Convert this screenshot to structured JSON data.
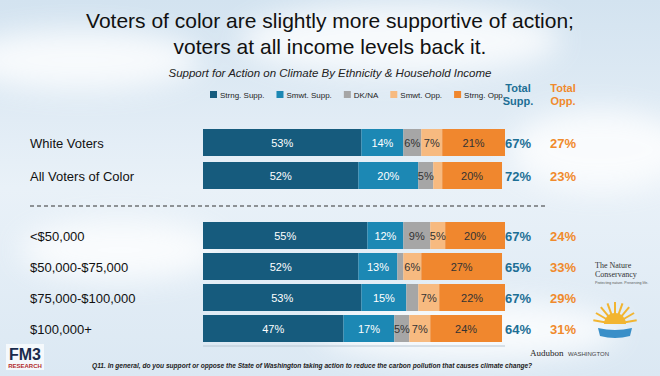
{
  "chart_data": {
    "type": "bar",
    "orientation": "horizontal",
    "stacked": true,
    "data_labels": true,
    "tick_labels": "y",
    "title": "Voters of color are slightly more supportive of action; voters at all income levels back it.",
    "subtitle": "Support for Action on Climate By Ethnicity & Household Income",
    "categories": [
      "White Voters",
      "All Voters of Color",
      "<$50,000",
      "$50,000-$75,000",
      "$75,000-$100,000",
      "$100,000+"
    ],
    "xlim": [
      0,
      101
    ],
    "series": [
      {
        "name": "Strng. Supp.",
        "color": "#165b7d",
        "values": [
          53,
          52,
          55,
          52,
          53,
          47
        ],
        "value_labels": [
          "53%",
          "52%",
          "55%",
          "52%",
          "53%",
          "47%"
        ]
      },
      {
        "name": "Smwt. Supp.",
        "color": "#1c88b4",
        "values": [
          14,
          20,
          12,
          13,
          15,
          17
        ],
        "value_labels": [
          "14%",
          "20%",
          "12%",
          "13%",
          "15%",
          "17%"
        ]
      },
      {
        "name": "DK/NA",
        "color": "#a6a6a6",
        "values": [
          6,
          5,
          9,
          2,
          4,
          5
        ],
        "value_labels": [
          "6%",
          "5%",
          "9%",
          null,
          null,
          "5%"
        ]
      },
      {
        "name": "Smwt. Opp.",
        "color": "#f7ba80",
        "values": [
          7,
          3,
          5,
          6,
          7,
          7
        ],
        "value_labels": [
          "7%",
          null,
          "5%",
          "6%",
          "7%",
          "7%"
        ]
      },
      {
        "name": "Strng. Opp.",
        "color": "#f0872e",
        "values": [
          21,
          20,
          20,
          27,
          22,
          24
        ],
        "value_labels": [
          "21%",
          "20%",
          "20%",
          "27%",
          "22%",
          "24%"
        ]
      }
    ],
    "totals": [
      {
        "name": "Total Supp.",
        "color": "#1d6f95",
        "values": [
          67,
          72,
          67,
          65,
          67,
          64
        ],
        "value_labels": [
          "67%",
          "72%",
          "67%",
          "65%",
          "67%",
          "64%"
        ]
      },
      {
        "name": "Total Opp.",
        "color": "#f08a2c",
        "values": [
          27,
          23,
          24,
          33,
          29,
          31
        ],
        "value_labels": [
          "27%",
          "23%",
          "24%",
          "33%",
          "29%",
          "31%"
        ]
      }
    ],
    "footnote": "Q11. In general, do you support or oppose the State of Washington taking action to reduce the carbon pollution that causes climate change?",
    "logos": {
      "fm3": "FM3",
      "fm3_sub": "RESEARCH",
      "tnc": "The Nature Conservancy",
      "tnc_sub": "Protecting nature. Preserving life.",
      "audubon": "Audubon",
      "audubon_sub": "WASHINGTON"
    }
  }
}
